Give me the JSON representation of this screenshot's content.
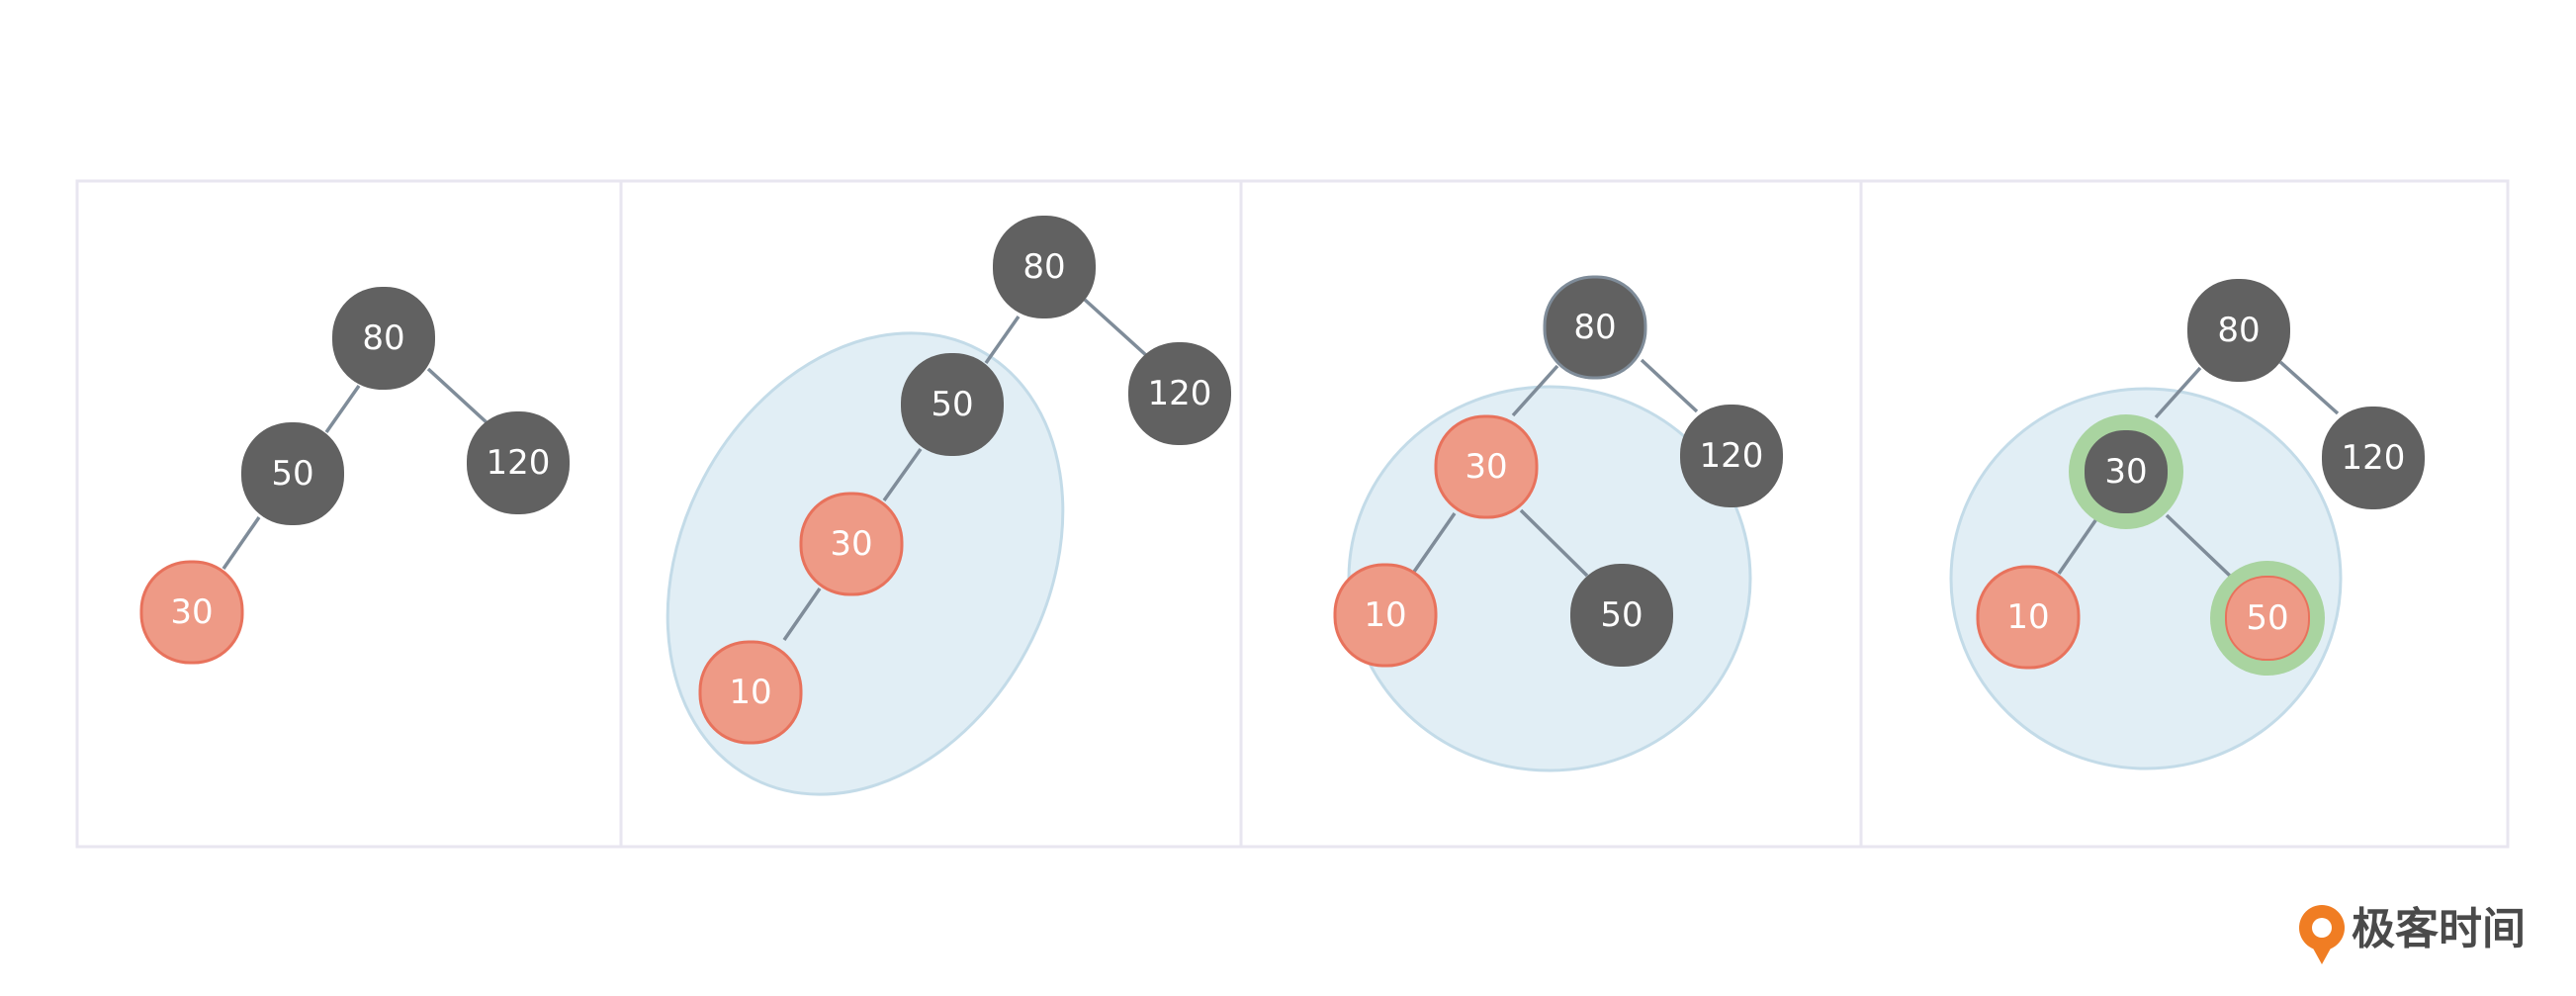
{
  "colors": {
    "black_node": "#616161",
    "red_node": "#ee9a86",
    "red_node_stroke": "#e8725c",
    "edge": "#7f8c99",
    "panel_border": "#e8e6f0",
    "highlight_fill": "#e1eef5",
    "highlight_stroke": "#c3dbe8",
    "green_ring": "#a9d4a0",
    "logo_orange": "#f07d23",
    "logo_text": "#4a4a4a"
  },
  "panels": [
    {
      "nodes": [
        {
          "id": "p1-80",
          "label": "80",
          "color": "black"
        },
        {
          "id": "p1-50",
          "label": "50",
          "color": "black"
        },
        {
          "id": "p1-120",
          "label": "120",
          "color": "black"
        },
        {
          "id": "p1-30",
          "label": "30",
          "color": "red"
        }
      ]
    },
    {
      "nodes": [
        {
          "id": "p2-80",
          "label": "80",
          "color": "black"
        },
        {
          "id": "p2-120",
          "label": "120",
          "color": "black"
        },
        {
          "id": "p2-50",
          "label": "50",
          "color": "black"
        },
        {
          "id": "p2-30",
          "label": "30",
          "color": "red"
        },
        {
          "id": "p2-10",
          "label": "10",
          "color": "red"
        }
      ]
    },
    {
      "nodes": [
        {
          "id": "p3-80",
          "label": "80",
          "color": "black"
        },
        {
          "id": "p3-120",
          "label": "120",
          "color": "black"
        },
        {
          "id": "p3-30",
          "label": "30",
          "color": "red"
        },
        {
          "id": "p3-10",
          "label": "10",
          "color": "red"
        },
        {
          "id": "p3-50",
          "label": "50",
          "color": "black"
        }
      ]
    },
    {
      "nodes": [
        {
          "id": "p4-80",
          "label": "80",
          "color": "black"
        },
        {
          "id": "p4-120",
          "label": "120",
          "color": "black"
        },
        {
          "id": "p4-30",
          "label": "30",
          "color": "black",
          "ring": "green"
        },
        {
          "id": "p4-10",
          "label": "10",
          "color": "red"
        },
        {
          "id": "p4-50",
          "label": "50",
          "color": "red",
          "ring": "green"
        }
      ]
    }
  ],
  "logo": {
    "text": "极客时间",
    "icon": "geektime-logo-icon"
  }
}
